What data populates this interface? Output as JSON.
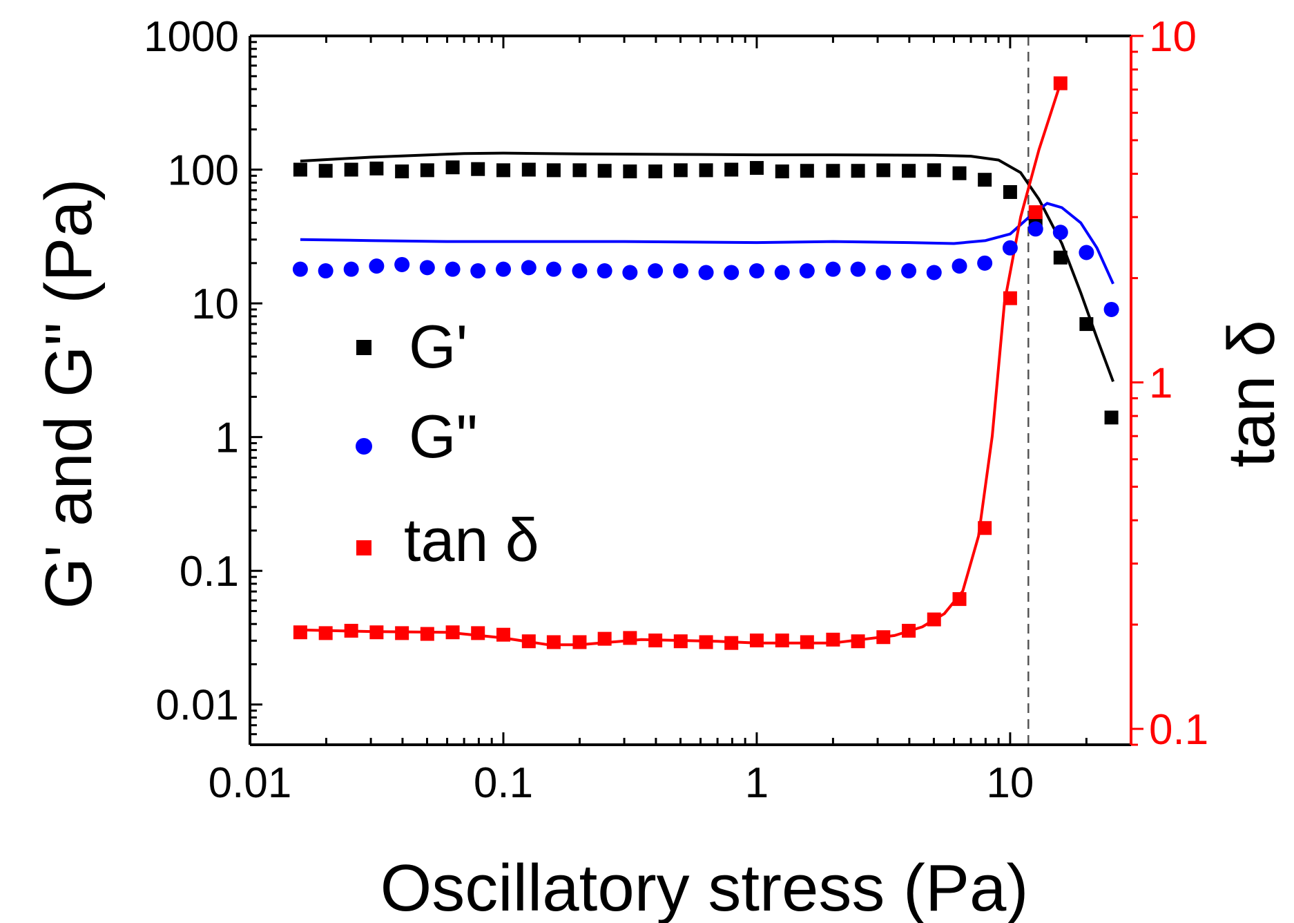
{
  "chart_data": {
    "type": "scatter",
    "title": "",
    "xlabel": "Oscillatory stress (Pa)",
    "ylabel": "G' and G\" (Pa)",
    "y2label": "tan δ",
    "xscale": "log",
    "yscale": "log",
    "y2scale": "log",
    "xlim": [
      0.01,
      30
    ],
    "ylim": [
      0.005,
      1000
    ],
    "y2lim": [
      0.09,
      10
    ],
    "x_ticks": [
      {
        "value": 0.01,
        "label": "0.01"
      },
      {
        "value": 0.1,
        "label": "0.1"
      },
      {
        "value": 1,
        "label": "1"
      },
      {
        "value": 10,
        "label": "10"
      }
    ],
    "y_ticks": [
      {
        "value": 0.01,
        "label": "0.01"
      },
      {
        "value": 0.1,
        "label": "0.1"
      },
      {
        "value": 1,
        "label": "1"
      },
      {
        "value": 10,
        "label": "10"
      },
      {
        "value": 100,
        "label": "100"
      },
      {
        "value": 1000,
        "label": "1000"
      }
    ],
    "y2_ticks": [
      {
        "value": 0.1,
        "label": "0.1"
      },
      {
        "value": 1,
        "label": "1"
      },
      {
        "value": 10,
        "label": "10"
      }
    ],
    "vline": {
      "x": 11.8,
      "style": "dashed",
      "color": "#555555"
    },
    "legend_position": "center-left",
    "x": [
      0.0158,
      0.0199,
      0.0251,
      0.0316,
      0.0398,
      0.0501,
      0.0631,
      0.0794,
      0.1,
      0.126,
      0.158,
      0.2,
      0.251,
      0.316,
      0.398,
      0.501,
      0.631,
      0.794,
      1.0,
      1.26,
      1.58,
      2.0,
      2.51,
      3.16,
      3.98,
      5.01,
      6.31,
      7.94,
      10.0,
      12.6,
      15.8,
      20.0,
      25.1
    ],
    "series": [
      {
        "name": "G'",
        "axis": "left",
        "color": "#000000",
        "marker": "square",
        "values": [
          100,
          98,
          100,
          102,
          97,
          99,
          104,
          101,
          99,
          100,
          99,
          99,
          98,
          97,
          97,
          99,
          99,
          100,
          103,
          97,
          98,
          98,
          98,
          99,
          98,
          99,
          94,
          84,
          68,
          40,
          22,
          7,
          1.4
        ],
        "fit_curve": {
          "x": [
            0.0158,
            0.03,
            0.07,
            0.1,
            0.2,
            0.5,
            1,
            2,
            5,
            7,
            9,
            11,
            13,
            16,
            19,
            22,
            25.5
          ],
          "y": [
            116,
            124,
            132,
            133,
            131,
            130,
            129,
            129,
            128,
            126,
            118,
            95,
            60,
            28,
            12,
            5.5,
            2.6
          ]
        }
      },
      {
        "name": "G\"",
        "axis": "left",
        "color": "#0000ff",
        "marker": "circle",
        "values": [
          18,
          17.5,
          18,
          19,
          19.5,
          18.5,
          18,
          17.5,
          18,
          18.5,
          18,
          17.5,
          17.5,
          17,
          17.5,
          17.5,
          17,
          17,
          17.5,
          17,
          17.5,
          18,
          18,
          17,
          17.5,
          17,
          19,
          20,
          26,
          36,
          34,
          24,
          9
        ],
        "fit_curve": {
          "x": [
            0.0158,
            0.03,
            0.06,
            0.1,
            0.3,
            1,
            2,
            4,
            6,
            8,
            10,
            12,
            14,
            16,
            19,
            22,
            25.5
          ],
          "y": [
            30,
            29.5,
            29,
            29,
            29,
            28.5,
            29,
            28.5,
            28,
            29.5,
            33,
            45,
            56,
            52,
            40,
            26,
            14
          ]
        }
      },
      {
        "name": "tan δ",
        "axis": "right",
        "color": "#ff0000",
        "marker": "square",
        "values": [
          0.19,
          0.189,
          0.192,
          0.19,
          0.189,
          0.188,
          0.19,
          0.189,
          0.187,
          0.179,
          0.178,
          0.178,
          0.182,
          0.183,
          0.18,
          0.179,
          0.178,
          0.177,
          0.18,
          0.18,
          0.178,
          0.181,
          0.179,
          0.184,
          0.192,
          0.207,
          0.237,
          0.38,
          1.75,
          3.1,
          7.3
        ],
        "fit_curve": {
          "x": [
            0.0158,
            0.03,
            0.06,
            0.1,
            0.15,
            0.2,
            0.35,
            0.7,
            1,
            2,
            3.5,
            4.5,
            5.5,
            6.5,
            7.5,
            8.5,
            9.5,
            11,
            13,
            15.8
          ],
          "y": [
            0.193,
            0.191,
            0.19,
            0.183,
            0.175,
            0.175,
            0.181,
            0.179,
            0.177,
            0.177,
            0.186,
            0.197,
            0.215,
            0.25,
            0.36,
            0.7,
            1.7,
            3.0,
            4.7,
            7.3
          ]
        }
      }
    ]
  }
}
